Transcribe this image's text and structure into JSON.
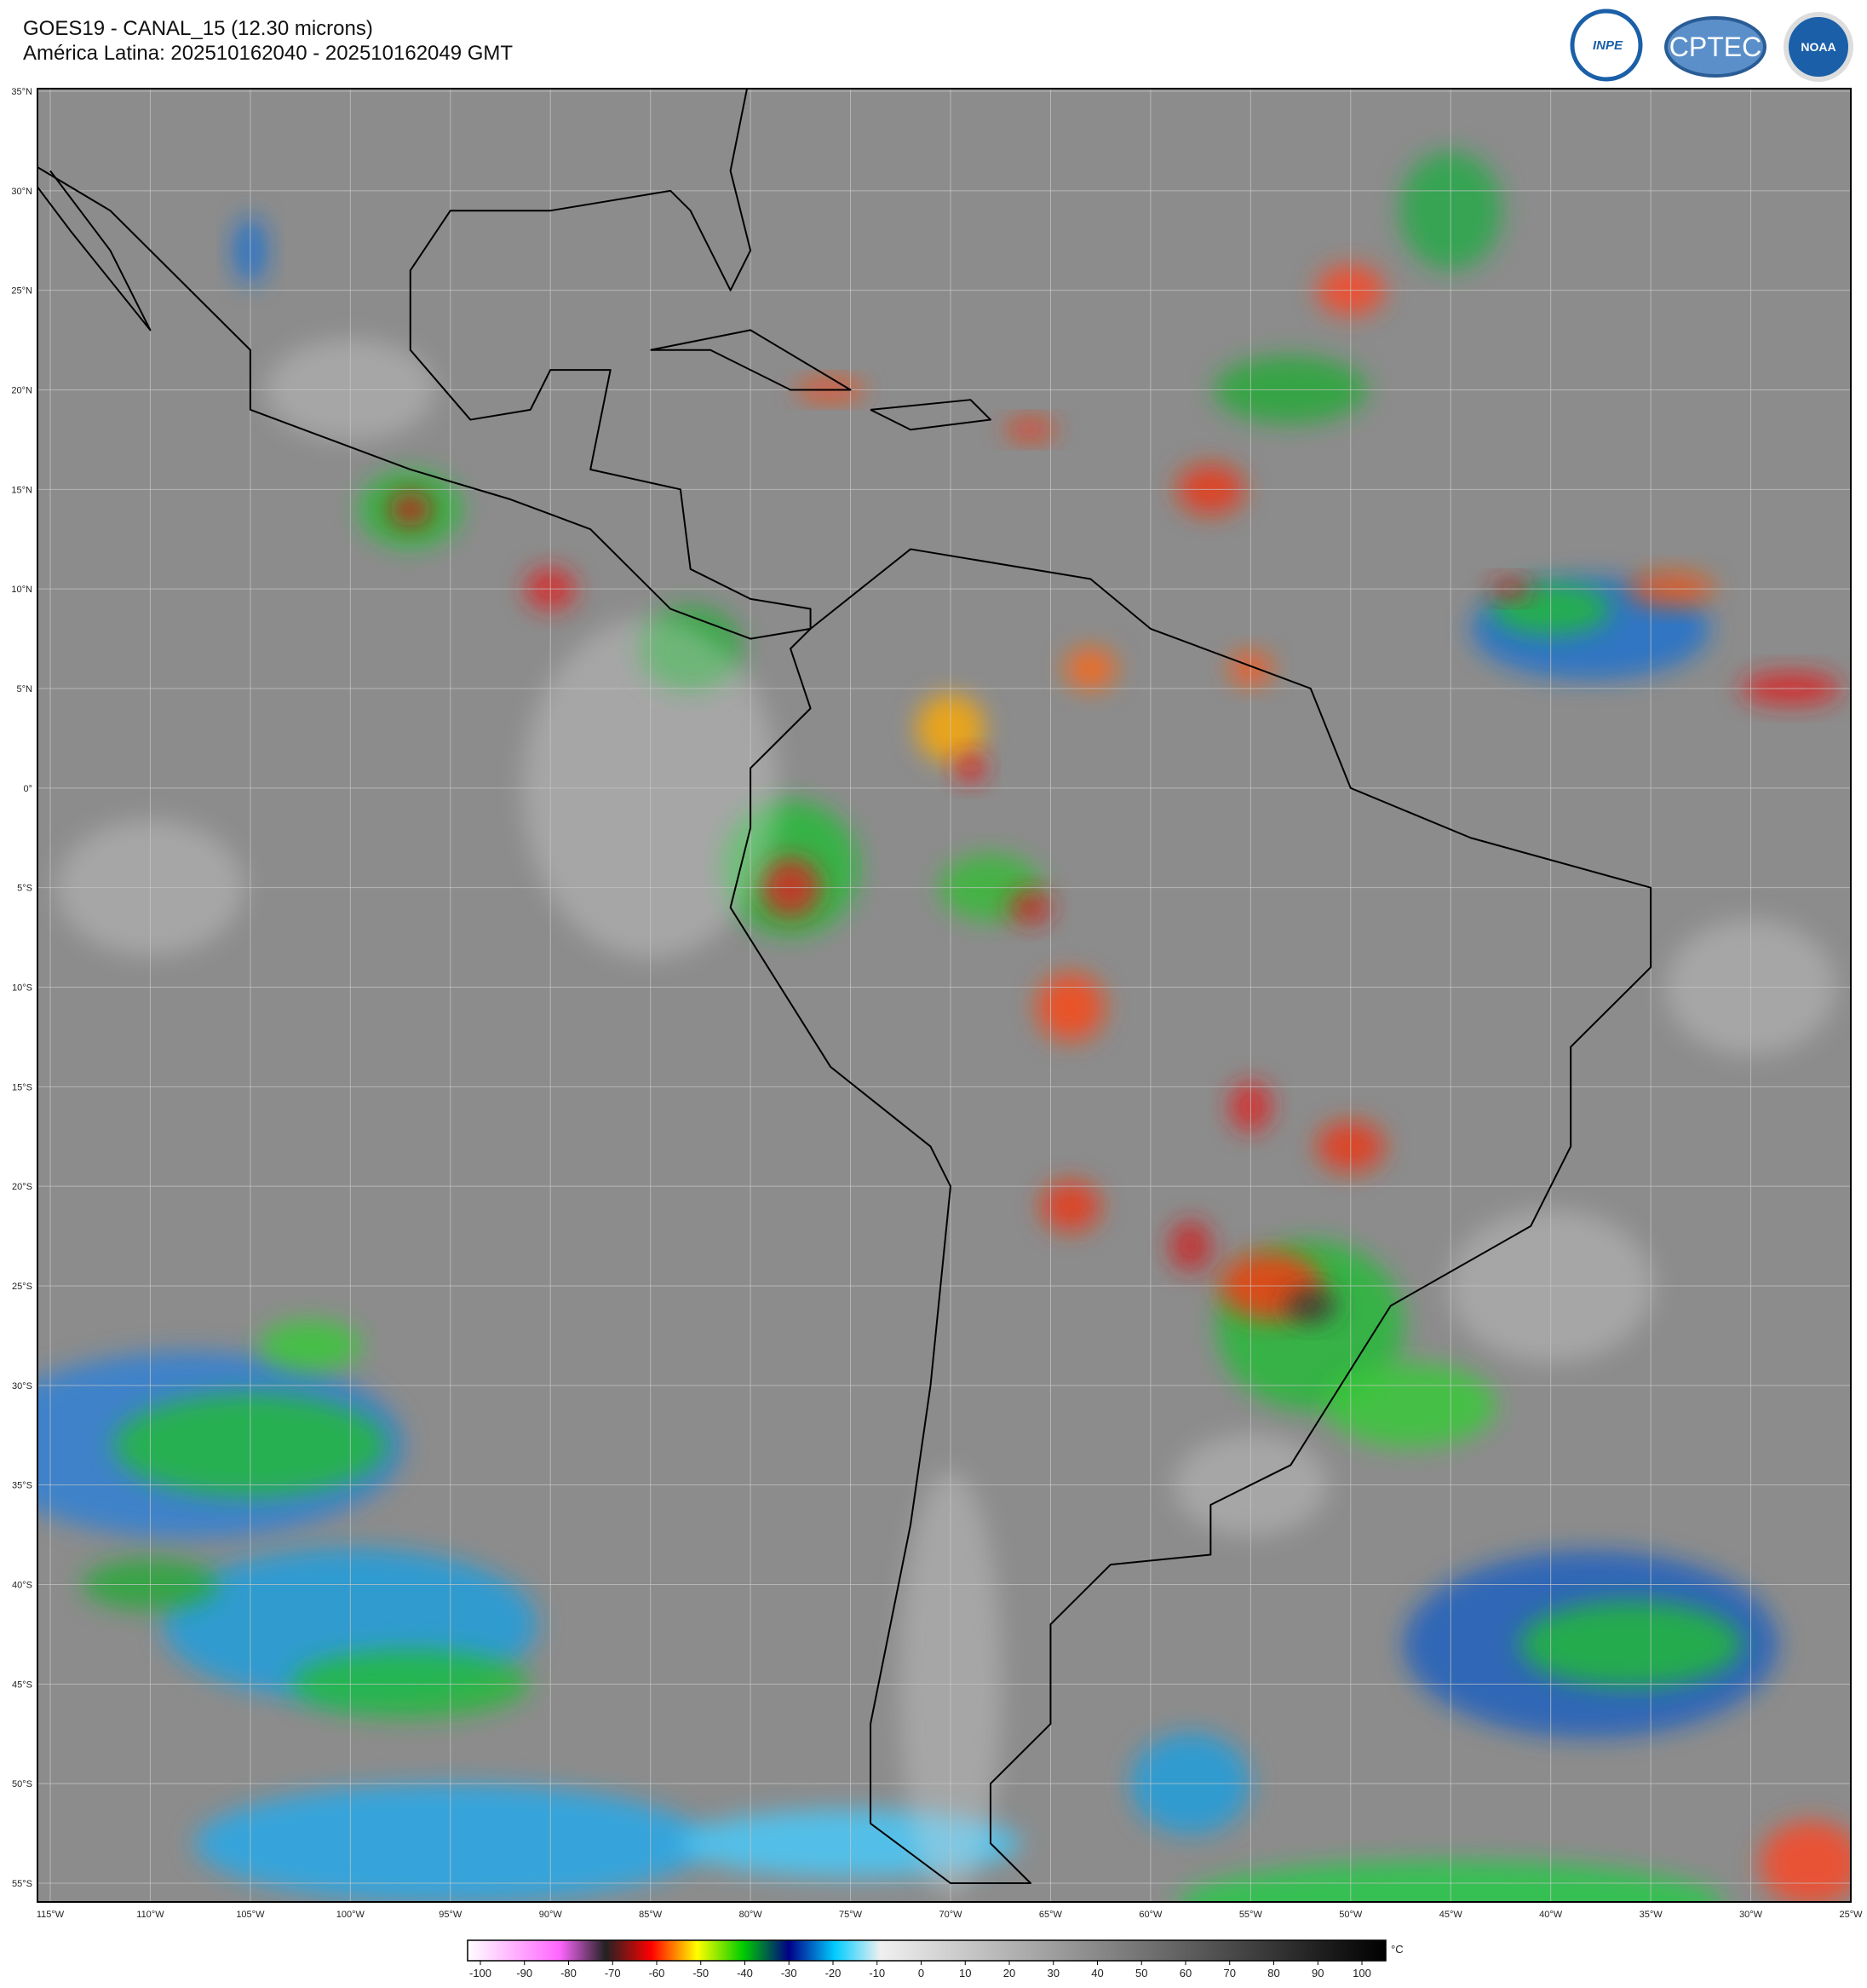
{
  "header": {
    "title": "GOES19 - CANAL_15 (12.30 microns)",
    "subtitle": "América Latina: 202510162040 - 202510162049 GMT"
  },
  "logos": [
    "INPE",
    "CPTEC",
    "NOAA"
  ],
  "map": {
    "latitudes": [
      "35°N",
      "30°N",
      "25°N",
      "20°N",
      "15°N",
      "10°N",
      "5°N",
      "0°",
      "5°S",
      "10°S",
      "15°S",
      "20°S",
      "25°S",
      "30°S",
      "35°S",
      "40°S",
      "45°S",
      "50°S",
      "55°S"
    ],
    "longitudes": [
      "115°W",
      "110°W",
      "105°W",
      "100°W",
      "95°W",
      "90°W",
      "85°W",
      "80°W",
      "75°W",
      "70°W",
      "65°W",
      "60°W",
      "55°W",
      "50°W",
      "45°W",
      "40°W",
      "35°W",
      "30°W",
      "25°W"
    ]
  },
  "colorbar": {
    "ticks": [
      -100,
      -90,
      -80,
      -70,
      -60,
      -50,
      -40,
      -30,
      -20,
      -10,
      0,
      10,
      20,
      30,
      40,
      50,
      60,
      70,
      80,
      90,
      100
    ],
    "unit": "°C"
  }
}
